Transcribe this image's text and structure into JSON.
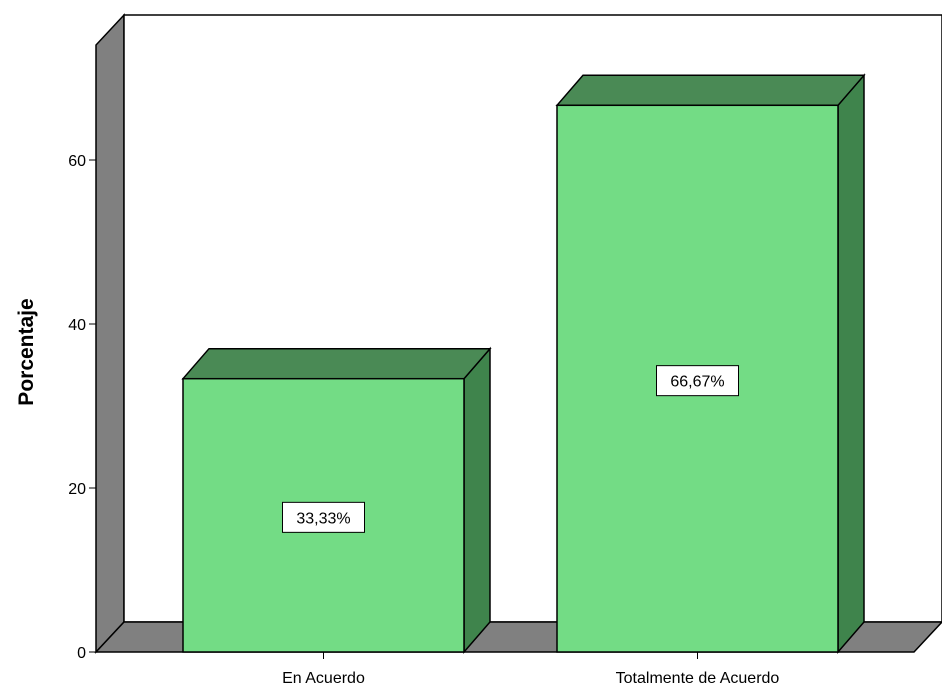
{
  "chart_data": {
    "type": "bar",
    "categories": [
      "En Acuerdo",
      "Totalmente de Acuerdo"
    ],
    "values": [
      33.33,
      66.67
    ],
    "data_labels": [
      "33,33%",
      "66,67%"
    ],
    "ylabel": "Porcentaje",
    "xlabel": "",
    "ylim": [
      0,
      75
    ],
    "y_ticks": [
      0,
      20,
      40,
      60
    ],
    "y_tick_labels": [
      "0",
      "20",
      "40",
      "60"
    ],
    "style": "3d",
    "colors": {
      "bar_front": "#73dc85",
      "bar_side": "#3f844c",
      "bar_top": "#4a8a55",
      "wall": "#808080",
      "floor": "#808080",
      "edge": "#000000"
    }
  }
}
